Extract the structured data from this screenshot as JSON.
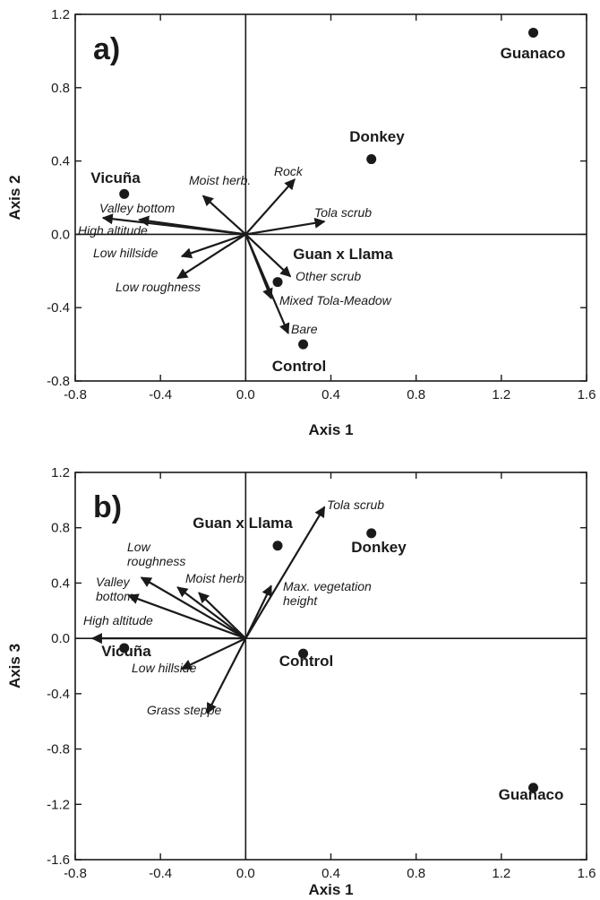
{
  "chart_data": [
    {
      "type": "scatter",
      "panel_label": "a)",
      "xlabel": "Axis 1",
      "ylabel": "Axis 2",
      "xlim": [
        -0.8,
        1.6
      ],
      "ylim": [
        -0.8,
        1.2
      ],
      "xticks": [
        "-0.8",
        "-0.4",
        "0.0",
        "0.4",
        "0.8",
        "1.2",
        "1.6"
      ],
      "yticks": [
        "-0.8",
        "-0.4",
        "0.0",
        "0.4",
        "0.8",
        "1.2"
      ],
      "reference_lines": "x = 0 and y = 0",
      "points": [
        {
          "label": "Guanaco",
          "x": 1.35,
          "y": 1.1
        },
        {
          "label": "Donkey",
          "x": 0.59,
          "y": 0.41
        },
        {
          "label": "Vicuña",
          "x": -0.57,
          "y": 0.22
        },
        {
          "label": "Guan x Llama",
          "x": 0.15,
          "y": -0.26
        },
        {
          "label": "Control",
          "x": 0.27,
          "y": -0.6
        }
      ],
      "vectors": [
        {
          "label": "Moist herb.",
          "x": -0.2,
          "y": 0.21
        },
        {
          "label": "Rock",
          "x": 0.23,
          "y": 0.3
        },
        {
          "label": "Tola scrub",
          "x": 0.37,
          "y": 0.07
        },
        {
          "label": "Valley bottom",
          "x": -0.5,
          "y": 0.08
        },
        {
          "label": "High altitude",
          "x": -0.67,
          "y": 0.09
        },
        {
          "label": "Low hillside",
          "x": -0.3,
          "y": -0.12
        },
        {
          "label": "Low roughness",
          "x": -0.32,
          "y": -0.24
        },
        {
          "label": "Other scrub",
          "x": 0.21,
          "y": -0.23
        },
        {
          "label": "Mixed Tola-Meadow",
          "x": 0.12,
          "y": -0.35
        },
        {
          "label": "Bare",
          "x": 0.2,
          "y": -0.54
        }
      ]
    },
    {
      "type": "scatter",
      "panel_label": "b)",
      "xlabel": "Axis 1",
      "ylabel": "Axis 3",
      "xlim": [
        -0.8,
        1.6
      ],
      "ylim": [
        -1.6,
        1.2
      ],
      "xticks": [
        "-0.8",
        "-0.4",
        "0.0",
        "0.4",
        "0.8",
        "1.2",
        "1.6"
      ],
      "yticks": [
        "-1.6",
        "-1.2",
        "-0.8",
        "-0.4",
        "0.0",
        "0.4",
        "0.8",
        "1.2"
      ],
      "reference_lines": "x = 0 and y = 0",
      "points": [
        {
          "label": "Guan x Llama",
          "x": 0.15,
          "y": 0.67
        },
        {
          "label": "Donkey",
          "x": 0.59,
          "y": 0.76
        },
        {
          "label": "Vicuña",
          "x": -0.57,
          "y": -0.07
        },
        {
          "label": "Control",
          "x": 0.27,
          "y": -0.11
        },
        {
          "label": "Guanaco",
          "x": 1.35,
          "y": -1.08
        }
      ],
      "vectors": [
        {
          "label": "Tola scrub",
          "x": 0.37,
          "y": 0.95
        },
        {
          "label": "Max. vegetation height",
          "x": 0.12,
          "y": 0.38
        },
        {
          "label": "Low roughness",
          "x": -0.49,
          "y": 0.44
        },
        {
          "label": "Moist herb.",
          "x": -0.32,
          "y": 0.37
        },
        {
          "label": "Moist herb.",
          "x": -0.22,
          "y": 0.33
        },
        {
          "label": "Valley bottom",
          "x": -0.55,
          "y": 0.31
        },
        {
          "label": "High altitude",
          "x": -0.72,
          "y": 0.0
        },
        {
          "label": "Low hillside",
          "x": -0.3,
          "y": -0.22
        },
        {
          "label": "Grass steppe",
          "x": -0.18,
          "y": -0.54
        }
      ]
    }
  ]
}
